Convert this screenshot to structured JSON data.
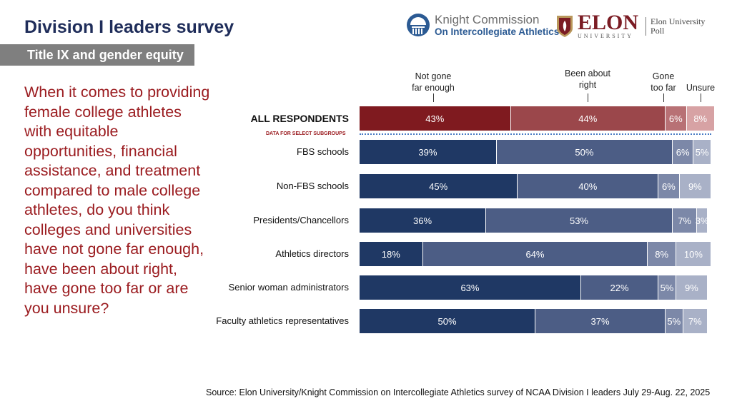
{
  "title": "Division I leaders survey",
  "subtitle": "Title IX and gender equity",
  "question": "When it comes to providing female college athletes with equitable opportunities, financial assistance, and treatment compared to male college athletes, do you think colleges and universities have not gone far enough, have been about right, have gone too far or are you unsure?",
  "logos": {
    "knight_line1": "Knight Commission",
    "knight_line2": "On Intercollegiate Athletics",
    "elon_big": "ELON",
    "elon_small": "UNIVERSITY",
    "elon_poll": "Elon University Poll"
  },
  "subgroup_label": "DATA FOR SELECT SUBGROUPS",
  "source": "Source: Elon University/Knight Commission on Intercollegiate Athletics survey of NCAA Division I leaders July 29-Aug. 22, 2025",
  "chart_data": {
    "type": "bar",
    "orientation": "horizontal",
    "stacked": true,
    "series_names": [
      "Not gone far enough",
      "Been about right",
      "Gone too far",
      "Unsure"
    ],
    "categories": [
      "ALL RESPONDENTS",
      "FBS schools",
      "Non-FBS schools",
      "Presidents/Chancellors",
      "Athletics directors",
      "Senior woman administrators",
      "Faculty athletics representatives"
    ],
    "values": [
      [
        43,
        44,
        6,
        8
      ],
      [
        39,
        50,
        6,
        5
      ],
      [
        45,
        40,
        6,
        9
      ],
      [
        36,
        53,
        7,
        3
      ],
      [
        18,
        64,
        8,
        10
      ],
      [
        63,
        22,
        5,
        9
      ],
      [
        50,
        37,
        5,
        7
      ]
    ],
    "colors_all": [
      "#7f1a1f",
      "#9b474b",
      "#b87175",
      "#d7a2a4"
    ],
    "colors_sub": [
      "#1f3864",
      "#4c5d85",
      "#7c88a8",
      "#a9b1c7"
    ]
  }
}
